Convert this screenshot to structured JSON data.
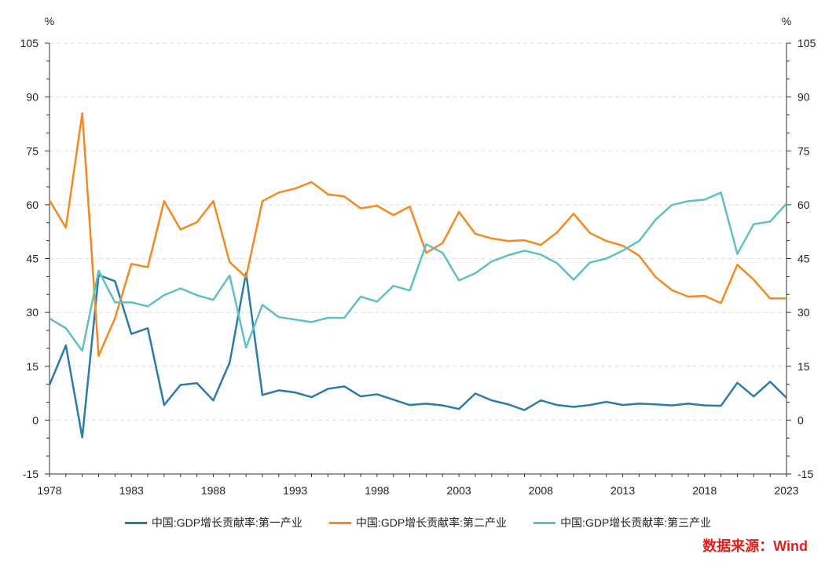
{
  "chart_data": {
    "type": "line",
    "title": "",
    "xlabel": "",
    "ylabel_left": "%",
    "ylabel_right": "%",
    "ylim": [
      -15,
      105
    ],
    "yticks": [
      -15,
      0,
      15,
      30,
      45,
      60,
      75,
      90,
      105
    ],
    "xlim": [
      1978,
      2023
    ],
    "xticks": [
      1978,
      1983,
      1988,
      1993,
      1998,
      2003,
      2008,
      2013,
      2018,
      2023
    ],
    "grid": true,
    "legend_position": "bottom",
    "x": [
      1978,
      1979,
      1980,
      1981,
      1982,
      1983,
      1984,
      1985,
      1986,
      1987,
      1988,
      1989,
      1990,
      1991,
      1992,
      1993,
      1994,
      1995,
      1996,
      1997,
      1998,
      1999,
      2000,
      2001,
      2002,
      2003,
      2004,
      2005,
      2006,
      2007,
      2008,
      2009,
      2010,
      2011,
      2012,
      2013,
      2014,
      2015,
      2016,
      2017,
      2018,
      2019,
      2020,
      2021,
      2022,
      2023
    ],
    "series": [
      {
        "name": "中国:GDP增长贡献率:第一产业",
        "color": "#2a7ba8",
        "values": [
          9.8,
          20.8,
          -4.8,
          40.4,
          38.7,
          24.0,
          25.6,
          4.2,
          9.8,
          10.3,
          5.5,
          16.0,
          41.0,
          7.0,
          8.3,
          7.7,
          6.4,
          8.7,
          9.4,
          6.6,
          7.2,
          5.7,
          4.2,
          4.6,
          4.1,
          3.1,
          7.4,
          5.5,
          4.4,
          2.8,
          5.5,
          4.2,
          3.7,
          4.2,
          5.1,
          4.2,
          4.6,
          4.4,
          4.1,
          4.6,
          4.1,
          4.0,
          10.4,
          6.6,
          10.7,
          6.2
        ]
      },
      {
        "name": "中国:GDP增长贡献率:第二产业",
        "color": "#f5891f",
        "values": [
          61.2,
          53.6,
          85.5,
          17.9,
          28.4,
          43.5,
          42.6,
          61.0,
          53.1,
          55.1,
          61.0,
          44.0,
          39.8,
          61.0,
          63.4,
          64.5,
          66.3,
          62.9,
          62.3,
          59.0,
          59.7,
          57.1,
          59.5,
          46.6,
          49.3,
          58.0,
          51.9,
          50.6,
          49.9,
          50.1,
          48.8,
          52.3,
          57.5,
          52.1,
          49.9,
          48.6,
          45.8,
          39.9,
          36.2,
          34.4,
          34.6,
          32.6,
          43.3,
          39.1,
          33.9,
          33.9
        ]
      },
      {
        "name": "中国:GDP增长贡献率:第三产业",
        "color": "#5fc1bf",
        "values": [
          28.3,
          25.6,
          19.3,
          41.6,
          32.8,
          32.8,
          31.7,
          34.8,
          36.7,
          34.8,
          33.5,
          40.3,
          20.2,
          32.1,
          28.7,
          28.0,
          27.3,
          28.5,
          28.5,
          34.4,
          33.0,
          37.4,
          36.1,
          49.0,
          46.6,
          38.9,
          40.9,
          44.2,
          45.9,
          47.2,
          46.1,
          43.7,
          39.1,
          43.9,
          45.0,
          47.2,
          49.9,
          55.8,
          59.9,
          61.0,
          61.4,
          63.4,
          46.3,
          54.6,
          55.3,
          60.3
        ]
      }
    ]
  },
  "source": "数据来源：Wind"
}
